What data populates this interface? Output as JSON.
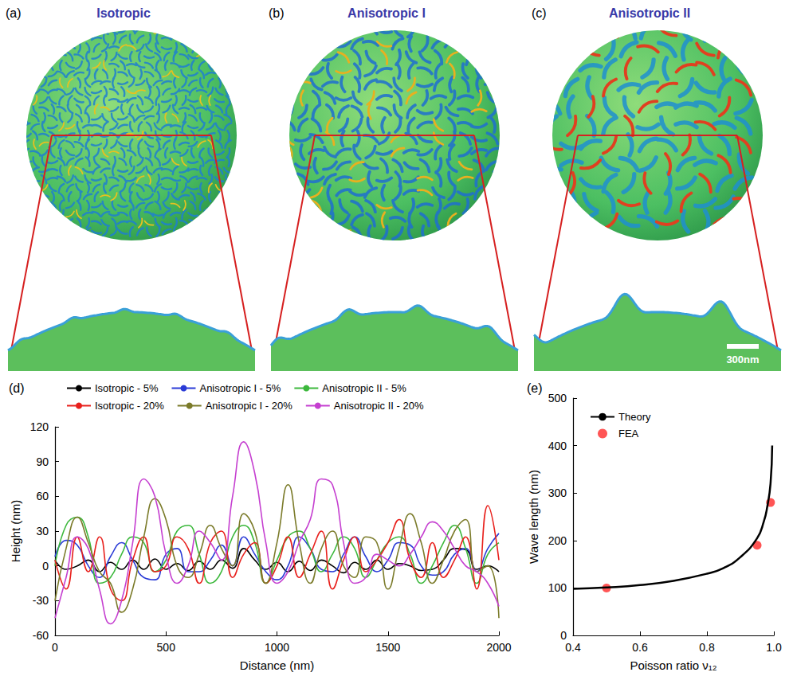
{
  "panels": [
    {
      "label": "(a)",
      "title": "Isotropic"
    },
    {
      "label": "(b)",
      "title": "Anisotropic I"
    },
    {
      "label": "(c)",
      "title": "Anisotropic II"
    }
  ],
  "scale_bar": "300nm",
  "chart_data": [
    {
      "type": "line",
      "panel_label": "(d)",
      "x_label": "Distance (nm)",
      "y_label": "Height (nm)",
      "xlim": [
        0,
        2000
      ],
      "xticks": [
        0,
        500,
        1000,
        1500,
        2000
      ],
      "ylim": [
        -60,
        120
      ],
      "yticks": [
        -60,
        -30,
        0,
        30,
        60,
        90,
        120
      ],
      "grid": false,
      "legend": "top",
      "x": [
        0,
        50,
        100,
        150,
        200,
        250,
        300,
        350,
        400,
        450,
        500,
        550,
        600,
        650,
        700,
        750,
        800,
        850,
        900,
        950,
        1000,
        1050,
        1100,
        1150,
        1200,
        1250,
        1300,
        1350,
        1400,
        1450,
        1500,
        1550,
        1600,
        1650,
        1700,
        1750,
        1800,
        1850,
        1900,
        1950,
        2000
      ],
      "series": [
        {
          "name": "Isotropic - 5%",
          "color": "#000000",
          "values": [
            5,
            -3,
            0,
            5,
            -5,
            3,
            -3,
            5,
            -3,
            6,
            -3,
            2,
            -4,
            4,
            -3,
            5,
            -2,
            15,
            5,
            -3,
            3,
            -5,
            4,
            -4,
            5,
            0,
            -6,
            3,
            -3,
            5,
            -3,
            2,
            0,
            -4,
            -3,
            5,
            15,
            14,
            -3,
            0,
            -5
          ]
        },
        {
          "name": "Anisotropic I - 5%",
          "color": "#2a3bd6",
          "values": [
            8,
            22,
            18,
            0,
            -10,
            8,
            20,
            5,
            -10,
            -12,
            10,
            15,
            -5,
            -5,
            5,
            18,
            0,
            25,
            10,
            -5,
            -12,
            0,
            25,
            15,
            -3,
            -5,
            10,
            25,
            8,
            -5,
            5,
            20,
            18,
            0,
            -8,
            -5,
            10,
            15,
            -5,
            15,
            28
          ]
        },
        {
          "name": "Anisotropic II - 5%",
          "color": "#3cb83c",
          "values": [
            0,
            35,
            42,
            25,
            -15,
            -10,
            10,
            25,
            20,
            -5,
            5,
            30,
            35,
            10,
            -15,
            -5,
            25,
            35,
            20,
            -15,
            5,
            25,
            30,
            15,
            -5,
            10,
            25,
            15,
            -10,
            5,
            20,
            25,
            10,
            -15,
            0,
            20,
            35,
            15,
            -15,
            10,
            20
          ]
        },
        {
          "name": "Isotropic - 20%",
          "color": "#e8201c",
          "values": [
            5,
            -20,
            25,
            -5,
            25,
            -20,
            -30,
            5,
            25,
            -5,
            0,
            25,
            15,
            -15,
            20,
            30,
            -10,
            10,
            20,
            -15,
            0,
            25,
            -10,
            10,
            30,
            -20,
            5,
            25,
            -5,
            5,
            20,
            40,
            5,
            -10,
            20,
            -10,
            5,
            25,
            -20,
            52,
            5
          ]
        },
        {
          "name": "Anisotropic I - 20%",
          "color": "#7b7b2a",
          "values": [
            -30,
            15,
            42,
            20,
            -5,
            -15,
            -40,
            -20,
            25,
            58,
            40,
            0,
            -10,
            10,
            35,
            15,
            0,
            45,
            30,
            -15,
            20,
            70,
            20,
            -15,
            15,
            30,
            0,
            -10,
            25,
            20,
            -20,
            15,
            45,
            20,
            -15,
            5,
            30,
            40,
            -5,
            0,
            -45
          ]
        },
        {
          "name": "Anisotropic II - 20%",
          "color": "#c53fd0",
          "values": [
            -45,
            -10,
            25,
            15,
            -20,
            -50,
            -30,
            20,
            75,
            60,
            10,
            -15,
            0,
            30,
            20,
            5,
            60,
            107,
            80,
            20,
            -15,
            -5,
            20,
            40,
            75,
            70,
            20,
            -15,
            -10,
            10,
            5,
            0,
            10,
            25,
            38,
            30,
            15,
            0,
            -5,
            -15,
            -35
          ]
        }
      ]
    },
    {
      "type": "line",
      "panel_label": "(e)",
      "x_label": "Poisson ratio ν₁₂",
      "y_label": "Wave length (nm)",
      "xlim": [
        0.4,
        1
      ],
      "xticks": [
        0.4,
        0.6,
        0.8,
        {
          "value": 1,
          "label": "1.0"
        }
      ],
      "ylim": [
        0,
        500
      ],
      "yticks": [
        0,
        100,
        200,
        300,
        400,
        500
      ],
      "grid": false,
      "legend": "upper left",
      "series": [
        {
          "name": "Theory",
          "type": "line",
          "color": "#000000",
          "line_style": "solid",
          "x": [
            0.4,
            0.5,
            0.6,
            0.7,
            0.8,
            0.85,
            0.9,
            0.95,
            0.97,
            0.98,
            0.99,
            0.995
          ],
          "values": [
            98,
            101,
            106,
            115,
            130,
            142,
            165,
            205,
            240,
            270,
            320,
            400
          ]
        },
        {
          "name": "FEA",
          "type": "scatter",
          "color": "#ff2a2a",
          "marker": "circle",
          "x": [
            0.5,
            0.95,
            0.99
          ],
          "values": [
            100,
            190,
            280
          ]
        }
      ]
    }
  ]
}
